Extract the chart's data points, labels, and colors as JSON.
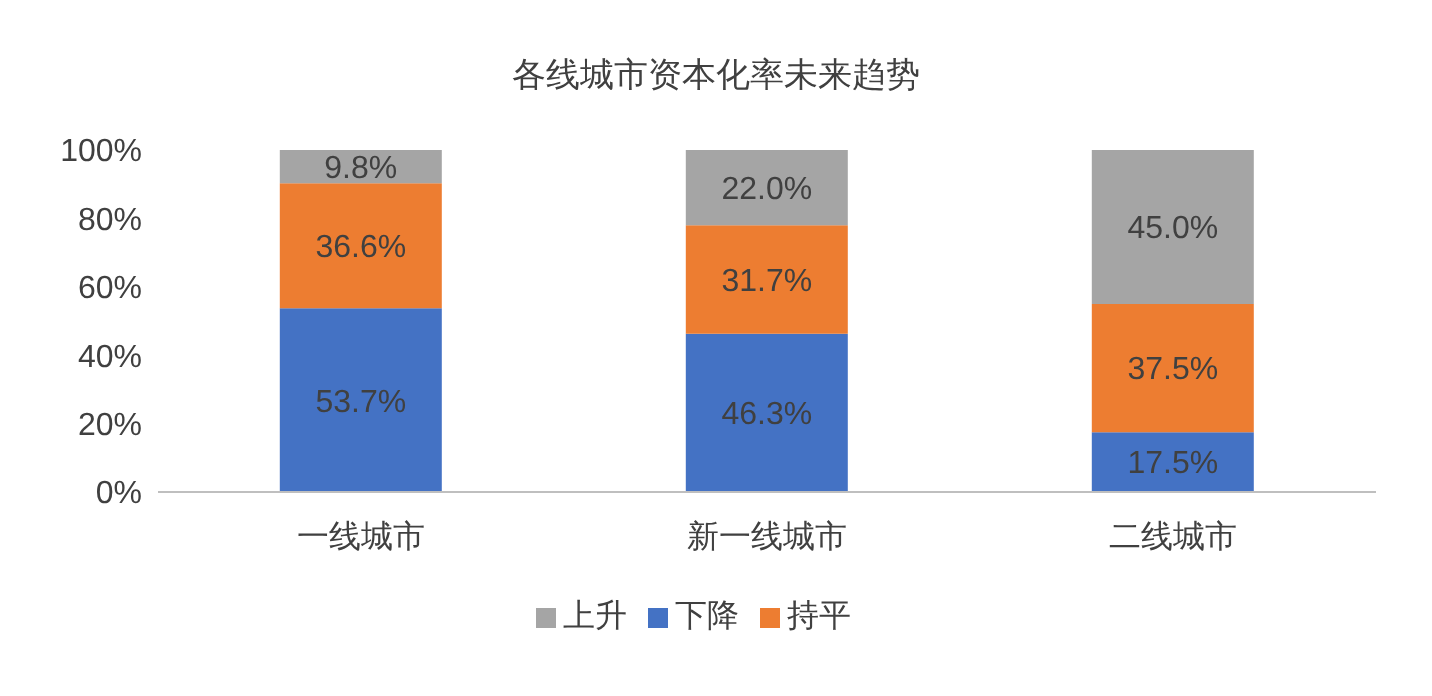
{
  "chart_data": {
    "type": "bar",
    "title": "各线城市资本化率未来趋势",
    "categories": [
      "一线城市",
      "新一线城市",
      "二线城市"
    ],
    "stacked": true,
    "series": [
      {
        "name": "下降",
        "color": "#4472c4",
        "values": [
          53.7,
          46.3,
          17.5
        ],
        "value_labels": [
          "53.7%",
          "46.3%",
          "17.5%"
        ]
      },
      {
        "name": "持平",
        "color": "#ed7d31",
        "values": [
          36.6,
          31.7,
          37.5
        ],
        "value_labels": [
          "36.6%",
          "31.7%",
          "37.5%"
        ]
      },
      {
        "name": "上升",
        "color": "#a5a5a5",
        "values": [
          9.8,
          22.0,
          45.0
        ],
        "value_labels": [
          "9.8%",
          "22.0%",
          "45.0%"
        ]
      }
    ],
    "ylim": [
      0,
      100
    ],
    "yticks": [
      {
        "value": 0,
        "label": "0%"
      },
      {
        "value": 20,
        "label": "20%"
      },
      {
        "value": 40,
        "label": "40%"
      },
      {
        "value": 60,
        "label": "60%"
      },
      {
        "value": 80,
        "label": "80%"
      },
      {
        "value": 100,
        "label": "100%"
      }
    ],
    "grid": false,
    "legend": "bottom"
  }
}
